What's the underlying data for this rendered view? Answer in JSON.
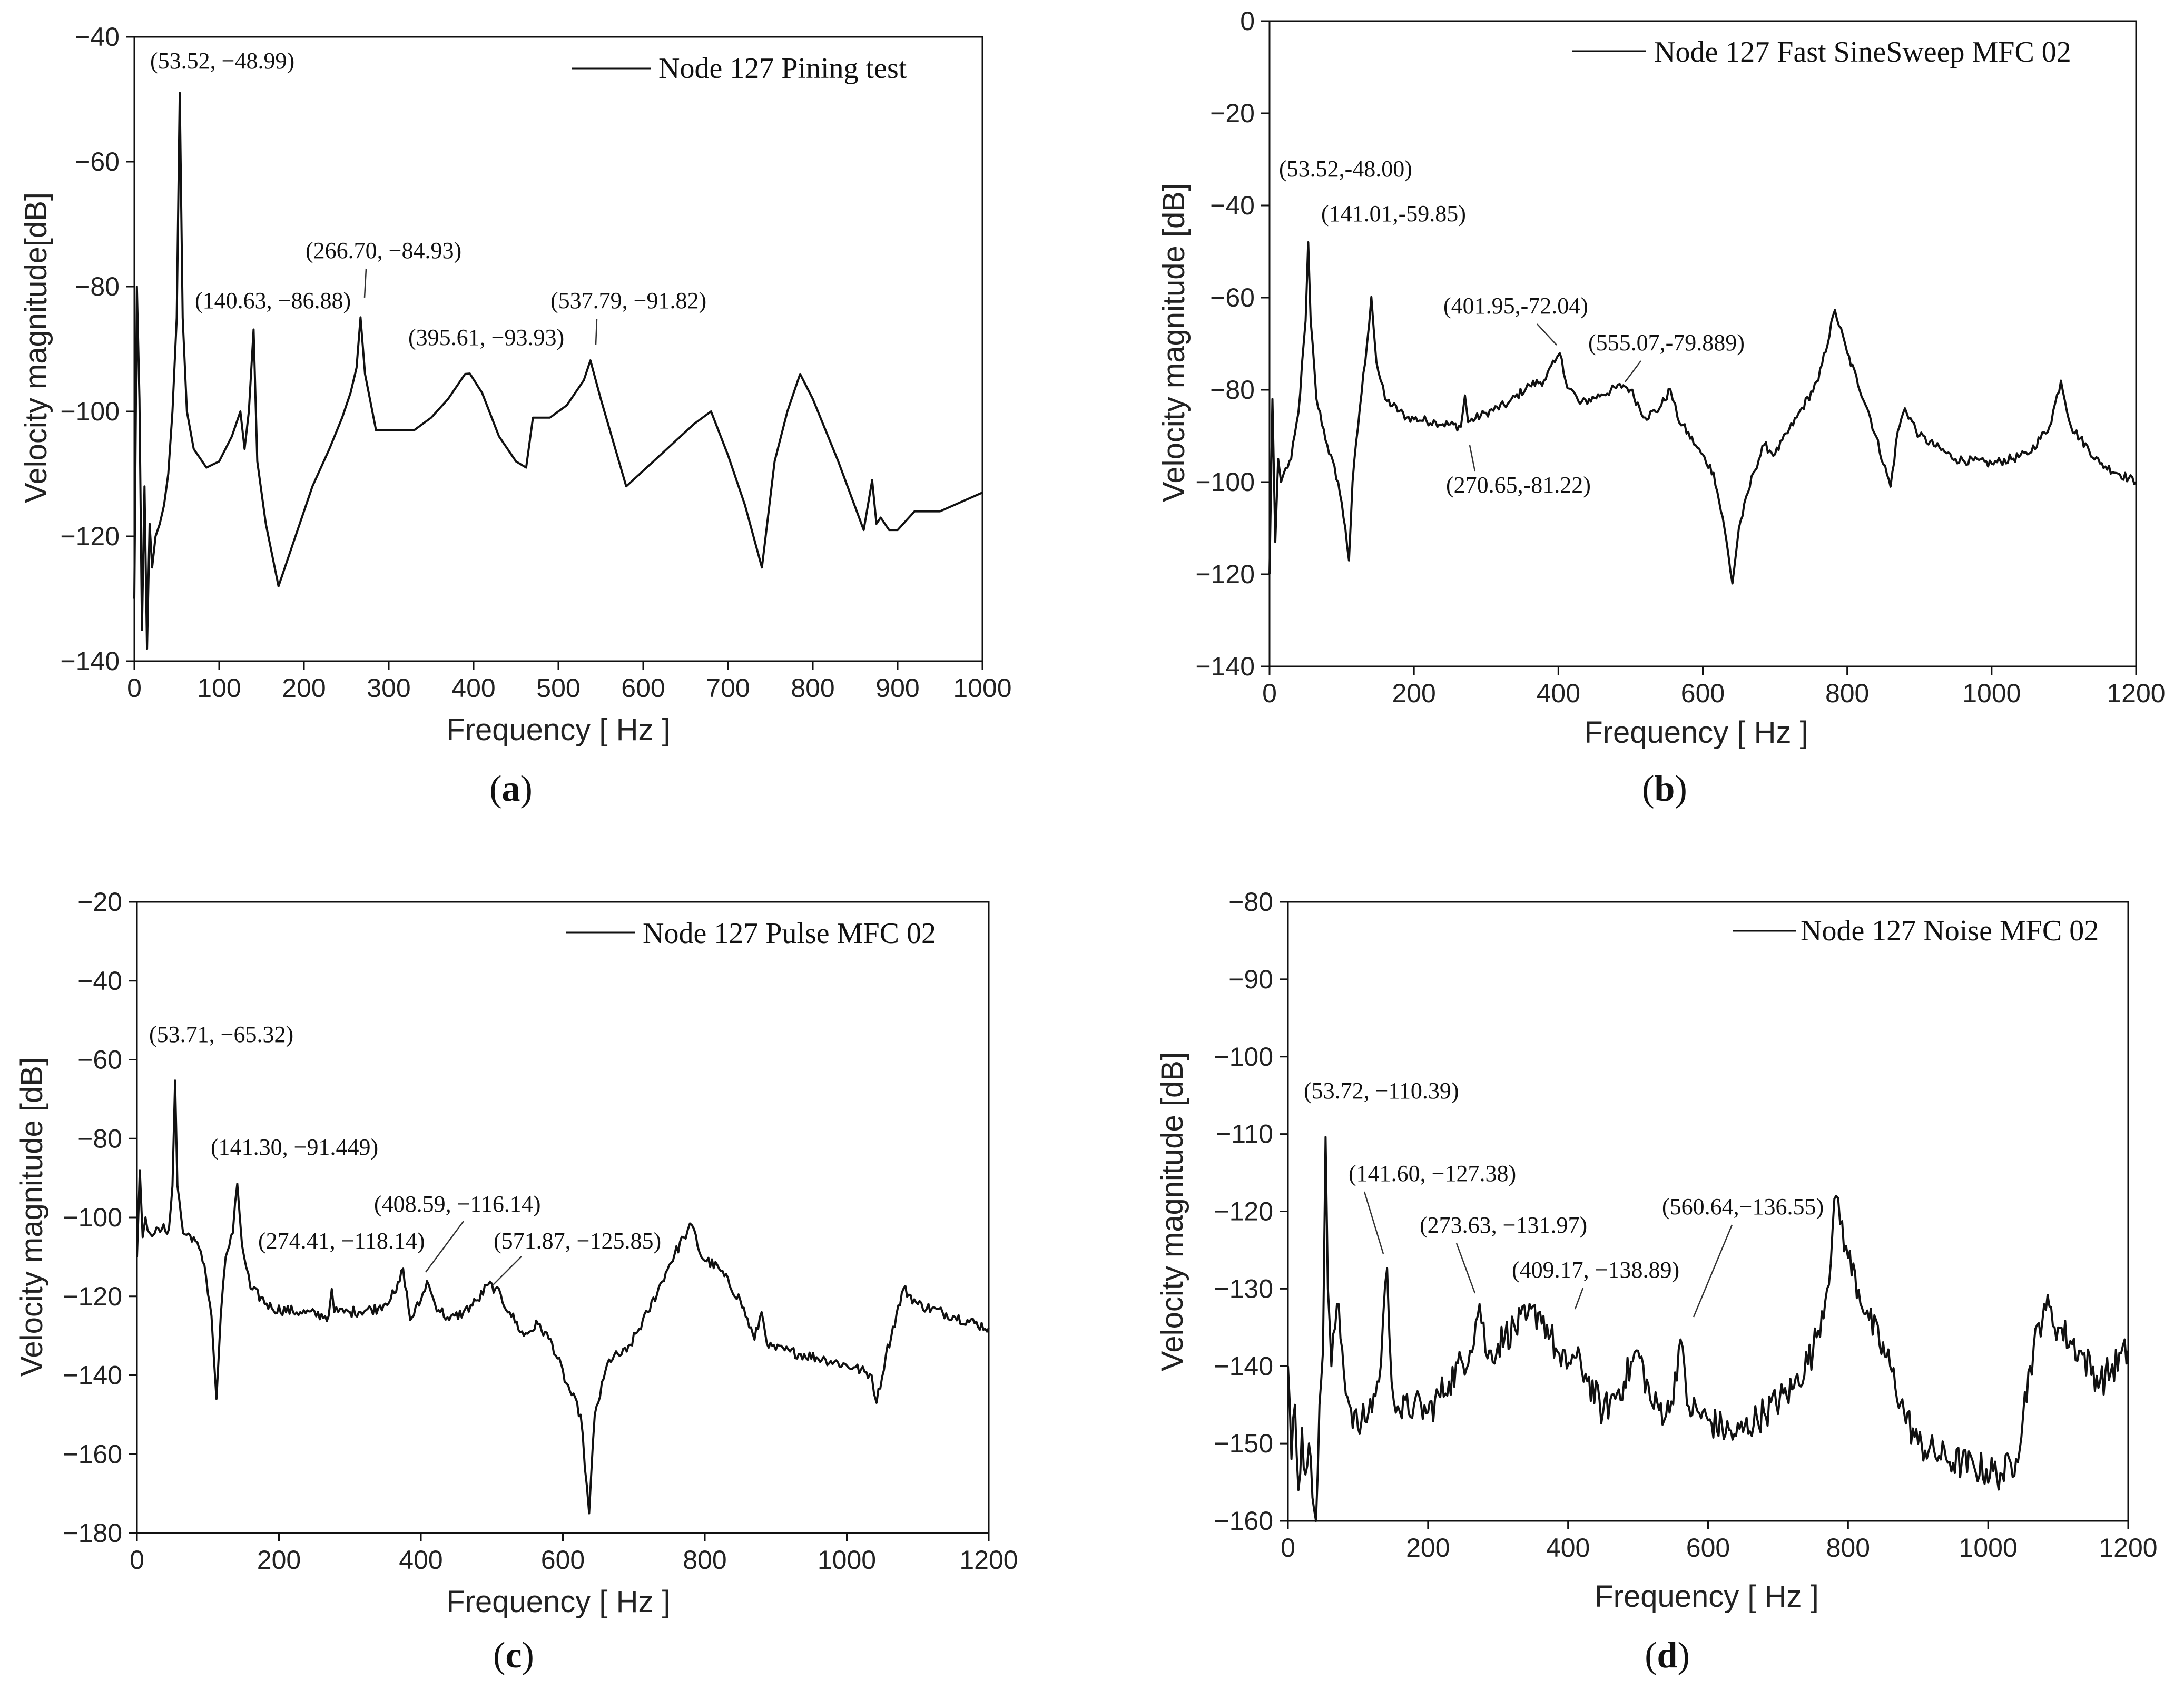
{
  "chart_data": [
    {
      "panel": "a",
      "type": "line",
      "caption_letter": "a",
      "xlabel": "Frequency [ Hz ]",
      "ylabel": "Velocity magnitude[dB]",
      "xlim": [
        0,
        1000
      ],
      "ylim": [
        -140,
        -40
      ],
      "xticks": [
        0,
        100,
        200,
        300,
        400,
        500,
        600,
        700,
        800,
        900,
        1000
      ],
      "yticks": [
        -140,
        -120,
        -100,
        -80,
        -60,
        -40
      ],
      "legend": "Node 127 Pining test",
      "legend_position": "top-right",
      "series": [
        {
          "name": "Node 127 Pining test",
          "x": [
            0,
            3,
            6,
            9,
            12,
            15,
            18,
            21,
            25,
            30,
            35,
            40,
            45,
            50,
            53.52,
            57,
            62,
            70,
            85,
            100,
            115,
            125,
            130,
            135,
            140.63,
            145,
            155,
            170,
            190,
            210,
            230,
            245,
            255,
            262,
            266.7,
            272,
            285,
            300,
            330,
            350,
            370,
            390,
            395.61,
            410,
            430,
            450,
            462,
            470,
            490,
            510,
            530,
            537.79,
            550,
            580,
            620,
            660,
            680,
            700,
            720,
            740,
            755,
            770,
            785,
            800,
            830,
            860,
            870,
            875,
            880,
            890,
            900,
            920,
            950,
            1000
          ],
          "y": [
            -130,
            -80,
            -98,
            -135,
            -112,
            -138,
            -118,
            -125,
            -120,
            -118,
            -115,
            -110,
            -100,
            -85,
            -48.99,
            -85,
            -100,
            -106,
            -109,
            -108,
            -104,
            -100,
            -106,
            -100,
            -86.88,
            -108,
            -118,
            -128,
            -120,
            -112,
            -106,
            -101,
            -97,
            -93,
            -84.93,
            -94,
            -103,
            -103,
            -103,
            -101,
            -98,
            -94,
            -93.93,
            -97,
            -104,
            -108,
            -109,
            -101,
            -101,
            -99,
            -95,
            -91.82,
            -98,
            -112,
            -107,
            -102,
            -100,
            -107,
            -115,
            -125,
            -108,
            -100,
            -94,
            -98,
            -108,
            -119,
            -111,
            -118,
            -117,
            -119,
            -119,
            -116,
            -116,
            -113
          ]
        }
      ],
      "annotations": [
        "(53.52, −48.99)",
        "(140.63, −86.88)",
        "(266.70, −84.93)",
        "(395.61, −93.93)",
        "(537.79, −91.82)"
      ]
    },
    {
      "panel": "b",
      "type": "line",
      "caption_letter": "b",
      "xlabel": "Frequency [ Hz ]",
      "ylabel": "Velocity magnitude [dB]",
      "xlim": [
        0,
        1200
      ],
      "ylim": [
        -140,
        0
      ],
      "xticks": [
        0,
        200,
        400,
        600,
        800,
        1000,
        1200
      ],
      "yticks": [
        -140,
        -120,
        -100,
        -80,
        -60,
        -40,
        -20,
        0
      ],
      "legend": "Node 127 Fast SineSweep MFC 02",
      "legend_position": "top-right",
      "series": [
        {
          "name": "Node 127 Fast SineSweep MFC 02",
          "x": [
            0,
            4,
            8,
            12,
            16,
            20,
            30,
            40,
            50,
            53.52,
            57,
            65,
            80,
            95,
            105,
            110,
            115,
            125,
            135,
            141.01,
            148,
            160,
            190,
            230,
            265,
            270.65,
            275,
            300,
            330,
            360,
            380,
            395,
            401.95,
            410,
            430,
            460,
            490,
            500,
            520,
            540,
            555.07,
            565,
            590,
            615,
            630,
            641,
            650,
            670,
            685,
            700,
            730,
            760,
            783,
            800,
            830,
            860,
            870,
            880,
            900,
            950,
            1000,
            1050,
            1080,
            1096,
            1110,
            1150,
            1200
          ],
          "y": [
            -120,
            -82,
            -113,
            -95,
            -100,
            -98,
            -95,
            -85,
            -65,
            -48.0,
            -65,
            -82,
            -92,
            -100,
            -110,
            -117,
            -100,
            -84,
            -70,
            -59.85,
            -74,
            -82,
            -86,
            -87,
            -88,
            -81.22,
            -87,
            -85,
            -83,
            -79,
            -78,
            -74,
            -72.04,
            -78,
            -83,
            -81,
            -79,
            -80,
            -86,
            -84,
            -79.889,
            -86,
            -92,
            -98,
            -110,
            -122,
            -110,
            -98,
            -92,
            -94,
            -86,
            -78,
            -62.7,
            -72,
            -85,
            -101,
            -89,
            -84,
            -90,
            -95,
            -96,
            -94,
            -88,
            -78,
            -88,
            -96,
            -100
          ]
        }
      ],
      "annotations": [
        "(53.52,-48.00)",
        "(141.01,-59.85)",
        "(401.95,-72.04)",
        "(555.07,-79.889)",
        "(270.65,-81.22)"
      ]
    },
    {
      "panel": "c",
      "type": "line",
      "caption_letter": "c",
      "xlabel": "Frequency [ Hz ]",
      "ylabel": "Velocity magnitude [dB]",
      "xlim": [
        0,
        1200
      ],
      "ylim": [
        -180,
        -20
      ],
      "xticks": [
        0,
        200,
        400,
        600,
        800,
        1000,
        1200
      ],
      "yticks": [
        -180,
        -160,
        -140,
        -120,
        -100,
        -80,
        -60,
        -40,
        -20
      ],
      "legend": "Node 127 Pulse MFC 02",
      "legend_position": "top-right",
      "series": [
        {
          "name": "Node 127 Pulse MFC 02",
          "x": [
            0,
            4,
            8,
            12,
            18,
            25,
            35,
            45,
            50,
            53.71,
            57,
            65,
            80,
            95,
            105,
            112,
            118,
            125,
            135,
            141.3,
            148,
            160,
            190,
            230,
            270,
            274.41,
            278,
            300,
            340,
            365,
            375,
            385,
            400,
            408.59,
            420,
            440,
            460,
            480,
            495,
            505,
            525,
            545,
            565,
            585,
            605,
            625,
            637,
            645,
            665,
            690,
            720,
            750,
            770,
            782,
            795,
            820,
            850,
            870,
            880,
            890,
            920,
            970,
            1010,
            1035,
            1042,
            1055,
            1080,
            1100,
            1150,
            1200
          ],
          "y": [
            -110,
            -88,
            -105,
            -100,
            -104,
            -104,
            -103,
            -103,
            -92,
            -65.32,
            -92,
            -104,
            -105,
            -112,
            -125,
            -146,
            -125,
            -110,
            -104,
            -91.449,
            -107,
            -118,
            -123,
            -124,
            -125,
            -118.14,
            -124,
            -124,
            -123,
            -119,
            -113,
            -126,
            -121,
            -116.14,
            -122,
            -126,
            -124,
            -121,
            -117,
            -118,
            -124,
            -130,
            -127,
            -132,
            -142,
            -150,
            -175,
            -150,
            -136,
            -134,
            -124,
            -112,
            -105,
            -102,
            -110,
            -113,
            -121,
            -131,
            -124,
            -133,
            -134,
            -136,
            -138,
            -140,
            -147,
            -135,
            -118,
            -122,
            -125,
            -128
          ]
        }
      ],
      "annotations": [
        "(53.71, −65.32)",
        "(141.30, −91.449)",
        "(274.41, −118.14)",
        "(408.59, −116.14)",
        "(571.87, −125.85)"
      ]
    },
    {
      "panel": "d",
      "type": "line",
      "caption_letter": "d",
      "xlabel": "Frequency [ Hz ]",
      "ylabel": "Velocity magnitude [dB]",
      "xlim": [
        0,
        1200
      ],
      "ylim": [
        -160,
        -80
      ],
      "xticks": [
        0,
        200,
        400,
        600,
        800,
        1000,
        1200
      ],
      "yticks": [
        -160,
        -150,
        -140,
        -130,
        -120,
        -110,
        -100,
        -90,
        -80
      ],
      "legend": "Node 127 Noise MFC 02",
      "legend_position": "top-right",
      "series": [
        {
          "name": "Node 127 Noise MFC 02",
          "x": [
            0,
            5,
            10,
            15,
            20,
            25,
            30,
            35,
            40,
            45,
            50,
            53.72,
            57,
            62,
            70,
            85,
            100,
            115,
            130,
            141.6,
            148,
            160,
            180,
            200,
            230,
            260,
            273.63,
            285,
            310,
            340,
            360,
            375,
            390,
            409.17,
            425,
            450,
            480,
            500,
            520,
            545,
            560.64,
            570,
            600,
            640,
            680,
            720,
            750,
            770,
            783,
            800,
            830,
            860,
            880,
            900,
            940,
            980,
            1020,
            1040,
            1060,
            1080,
            1100,
            1130,
            1160,
            1200
          ],
          "y": [
            -140,
            -152,
            -145,
            -156,
            -148,
            -154,
            -150,
            -157,
            -160,
            -145,
            -138,
            -110.39,
            -130,
            -140,
            -132,
            -144,
            -148,
            -146,
            -142,
            -127.38,
            -142,
            -146,
            -145,
            -146,
            -142,
            -138,
            -131.97,
            -139,
            -136,
            -134,
            -133,
            -136,
            -140,
            -138.89,
            -141,
            -146,
            -142,
            -138,
            -145,
            -146,
            -136.55,
            -145,
            -147,
            -149,
            -146,
            -143,
            -138,
            -130,
            -118,
            -126,
            -134,
            -140,
            -146,
            -150,
            -152,
            -153,
            -154,
            -152,
            -140,
            -132,
            -135,
            -138,
            -142,
            -138
          ]
        }
      ],
      "annotations": [
        "(53.72, −110.39)",
        "(141.60, −127.38)",
        "(273.63, −131.97)",
        "(409.17, −138.89)",
        "(560.64,−136.55)"
      ]
    }
  ]
}
